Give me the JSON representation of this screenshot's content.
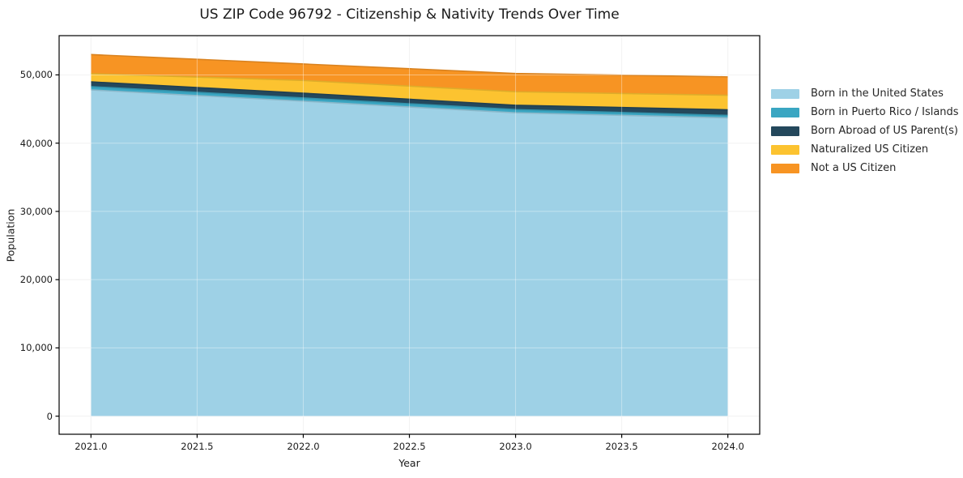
{
  "title": "US ZIP Code 96792 - Citizenship & Nativity Trends Over Time",
  "chart_data": {
    "type": "area",
    "stacked": true,
    "title": "US ZIP Code 96792 - Citizenship & Nativity Trends Over Time",
    "xlabel": "Year",
    "ylabel": "Population",
    "x": [
      2021,
      2022,
      2023,
      2024
    ],
    "series": [
      {
        "name": "Born in the United States",
        "color": "#9ed1e6",
        "values": [
          47800,
          46150,
          44450,
          43700
        ]
      },
      {
        "name": "Born in Puerto Rico / Islands",
        "color": "#3aa6c2",
        "values": [
          480,
          470,
          470,
          360
        ]
      },
      {
        "name": "Born Abroad of US Parent(s)",
        "color": "#24485c",
        "values": [
          700,
          700,
          630,
          830
        ]
      },
      {
        "name": "Naturalized US Citizen",
        "color": "#fcc330",
        "values": [
          1200,
          1860,
          1980,
          2130
        ]
      },
      {
        "name": "Not a US Citizen",
        "color": "#f79423",
        "values": [
          2800,
          2420,
          2680,
          2690
        ]
      }
    ],
    "x_tick_labels": [
      "2021.0",
      "2021.5",
      "2022.0",
      "2022.5",
      "2023.0",
      "2023.5",
      "2024.0"
    ],
    "x_tick_values": [
      2021,
      2021.5,
      2022,
      2022.5,
      2023,
      2023.5,
      2024
    ],
    "y_tick_values": [
      0,
      10000,
      20000,
      30000,
      40000,
      50000
    ],
    "xlim": [
      2020.85,
      2024.15
    ],
    "ylim": [
      -2650,
      55750
    ],
    "grid": true,
    "legend_position": "right-outside"
  }
}
